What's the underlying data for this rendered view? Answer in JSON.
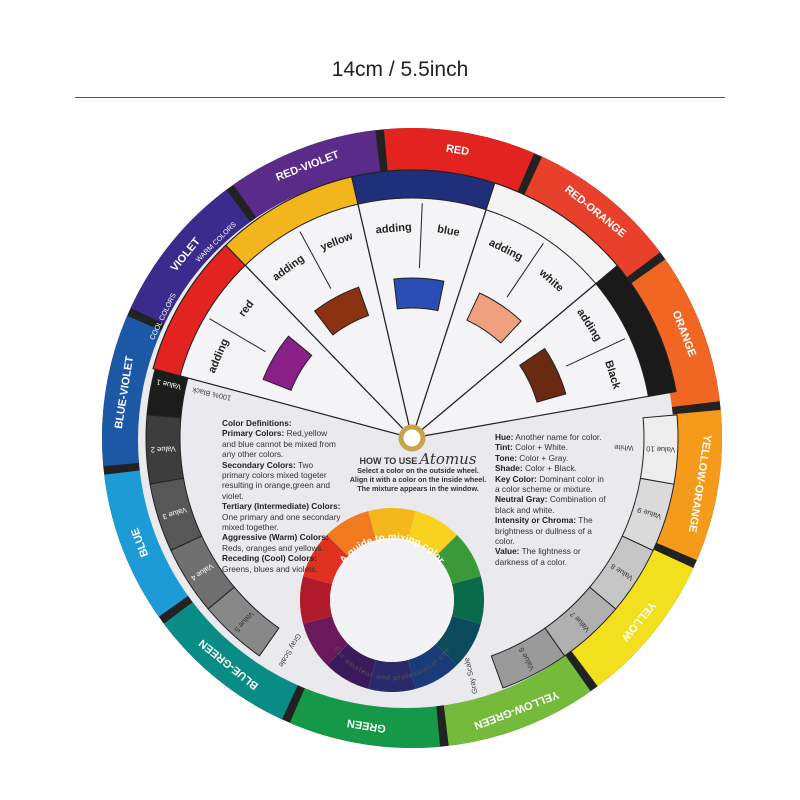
{
  "header": {
    "title": "14cm / 5.5inch"
  },
  "outer_ring": [
    {
      "label": "RED",
      "color": "#e2231f"
    },
    {
      "label": "RED-ORANGE",
      "color": "#e8402a"
    },
    {
      "label": "ORANGE",
      "color": "#f06622"
    },
    {
      "label": "YELLOW-ORANGE",
      "color": "#f59a1b"
    },
    {
      "label": "YELLOW",
      "color": "#f2df1e"
    },
    {
      "label": "YELLOW-GREEN",
      "color": "#74bb3b"
    },
    {
      "label": "GREEN",
      "color": "#159847"
    },
    {
      "label": "BLUE-GREEN",
      "color": "#098c86"
    },
    {
      "label": "BLUE",
      "color": "#1d9bd7"
    },
    {
      "label": "BLUE-VIOLET",
      "color": "#1c58a6"
    },
    {
      "label": "VIOLET",
      "color": "#3b2b8c"
    },
    {
      "label": "RED-VIOLET",
      "color": "#5a2b89"
    }
  ],
  "ring_notes": {
    "warm": "WARM COLORS",
    "cool": "COOL COLORS"
  },
  "windows": [
    {
      "adding": "adding",
      "color_name": "red",
      "tab_color": "#e2231f",
      "mix_color": "#8a1f88"
    },
    {
      "adding": "adding",
      "color_name": "yellow",
      "tab_color": "#f2b51e",
      "mix_color": "#8a3212"
    },
    {
      "adding": "adding",
      "color_name": "blue",
      "tab_color": "#1f2f7a",
      "mix_color": "#2a4db3"
    },
    {
      "adding": "adding",
      "color_name": "white",
      "tab_color": "#f4f4f4",
      "mix_color": "#f0a07e"
    },
    {
      "adding": "adding",
      "color_name": "Black",
      "tab_color": "#1a1a1a",
      "mix_color": "#6a2a12"
    }
  ],
  "gray_scale": {
    "label": "Gray Scale",
    "black_label": "100% Black",
    "white_label": "White",
    "values": [
      {
        "label": "Value 1",
        "color": "#1c1c1c"
      },
      {
        "label": "Value 2",
        "color": "#3d3d3d"
      },
      {
        "label": "Value 3",
        "color": "#575757"
      },
      {
        "label": "Value 4",
        "color": "#707070"
      },
      {
        "label": "Value 5",
        "color": "#888888"
      },
      {
        "label": "Value 6",
        "color": "#9a9a9a"
      },
      {
        "label": "Value 7",
        "color": "#b0b0b0"
      },
      {
        "label": "Value 8",
        "color": "#c6c6c6"
      },
      {
        "label": "Value 9",
        "color": "#dadada"
      },
      {
        "label": "Value 10",
        "color": "#ededed"
      }
    ]
  },
  "definitions_left": [
    {
      "term": "Color Definitions:",
      "text": ""
    },
    {
      "term": "Primary Colors:",
      "text": "Red,yellow and blue cannot be mixed from any other colors."
    },
    {
      "term": "Secondary Colors:",
      "text": "Two primary colors mixed togeter resulting in orange,green and violet."
    },
    {
      "term": "Tertiary (Intermediate) Colors:",
      "text": "One primary and one secondary mixed together."
    },
    {
      "term": "Aggressive (Warm) Colors:",
      "text": "Reds, oranges and yellows."
    },
    {
      "term": "Receding (Cool) Colors:",
      "text": "Greens, blues and violets."
    }
  ],
  "definitions_right": [
    {
      "term": "Hue:",
      "text": "Another name for color."
    },
    {
      "term": "Tint:",
      "text": "Color + White."
    },
    {
      "term": "Tone:",
      "text": "Color + Gray."
    },
    {
      "term": "Shade:",
      "text": "Color + Black."
    },
    {
      "term": "Key Color:",
      "text": "Dominant color in a color scheme or mixture."
    },
    {
      "term": "Neutral Gray:",
      "text": "Combination of black and white."
    },
    {
      "term": "Intensity or Chroma:",
      "text": "The brightness or dullness of a color."
    },
    {
      "term": "Value:",
      "text": "The lightness or darkness of a color."
    }
  ],
  "how_to": {
    "heading": "HOW TO USE",
    "brand": "Atomus",
    "lines": [
      "Select a color on the outside wheel.",
      "Align it with a color on the inside wheel.",
      "The mixture appears in the window."
    ]
  },
  "inner_wheel": {
    "title": "A guide to mixing color",
    "subtitle": "For amateur and professional use",
    "colors": [
      "#f5b81c",
      "#f7d21e",
      "#3a9a3a",
      "#0a6a4a",
      "#0a4a5a",
      "#1a3a7a",
      "#2a2a6a",
      "#3a1a5a",
      "#6a1a5a",
      "#b01a2a",
      "#e0301e",
      "#f07a1e"
    ]
  }
}
